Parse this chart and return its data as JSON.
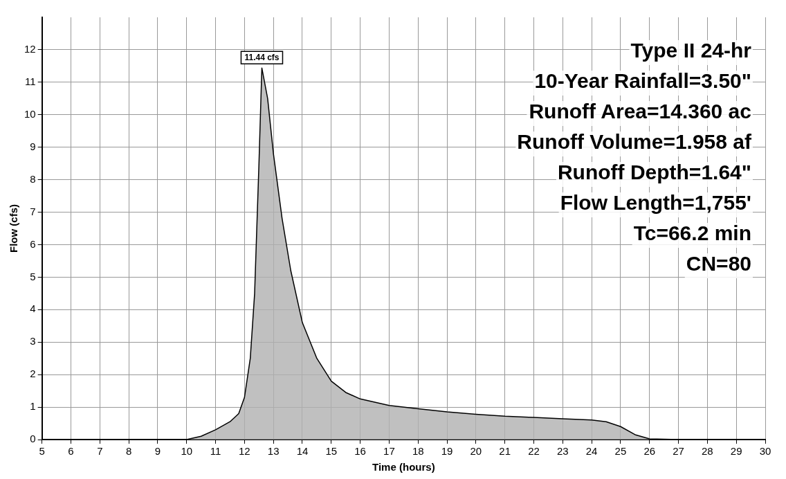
{
  "chart_data": {
    "type": "area",
    "xlabel": "Time (hours)",
    "ylabel": "Flow (cfs)",
    "xlim": [
      5,
      30
    ],
    "xticks": [
      5,
      6,
      7,
      8,
      9,
      10,
      11,
      12,
      13,
      14,
      15,
      16,
      17,
      18,
      19,
      20,
      21,
      22,
      23,
      24,
      25,
      26,
      27,
      28,
      29,
      30
    ],
    "ylim": [
      0,
      13
    ],
    "yticks": [
      0,
      1,
      2,
      3,
      4,
      5,
      6,
      7,
      8,
      9,
      10,
      11,
      12
    ],
    "grid": true,
    "legend": false,
    "series": [
      {
        "color": "#b0b0b0",
        "x": [
          5,
          8,
          10,
          10.5,
          11,
          11.5,
          11.8,
          12,
          12.2,
          12.35,
          12.5,
          12.6,
          12.8,
          13,
          13.3,
          13.6,
          14,
          14.5,
          15,
          15.5,
          16,
          17,
          18,
          19,
          20,
          21,
          22,
          23,
          24,
          24.5,
          25,
          25.5,
          26,
          27,
          28,
          29,
          30
        ],
        "values": [
          0,
          0,
          0,
          0.1,
          0.3,
          0.55,
          0.8,
          1.3,
          2.5,
          4.5,
          8.5,
          11.44,
          10.5,
          8.8,
          6.8,
          5.2,
          3.6,
          2.5,
          1.8,
          1.45,
          1.25,
          1.05,
          0.95,
          0.85,
          0.78,
          0.72,
          0.68,
          0.64,
          0.6,
          0.55,
          0.4,
          0.15,
          0.02,
          0,
          0,
          0,
          0
        ]
      }
    ],
    "annotations": [
      {
        "text": "11.44 cfs",
        "x": 12.6,
        "y": 11.44
      },
      "Type II 24-hr",
      "10-Year Rainfall=3.50\"",
      "Runoff Area=14.360 ac",
      "Runoff Volume=1.958 af",
      "Runoff Depth=1.64\"",
      "Flow Length=1,755'",
      "Tc=66.2 min",
      "CN=80"
    ]
  }
}
